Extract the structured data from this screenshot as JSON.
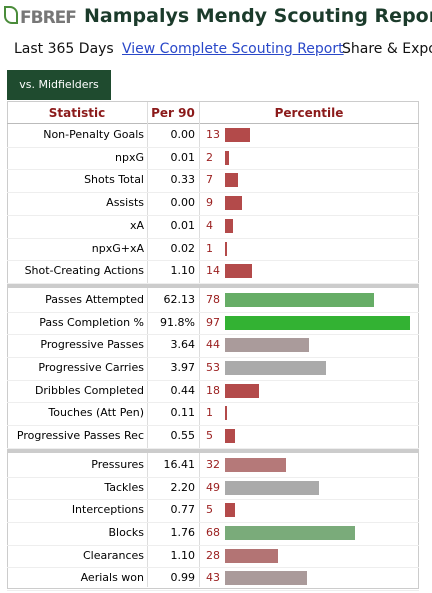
{
  "header": {
    "logo": "FBREF",
    "title": "Nampalys Mendy Scouting Report"
  },
  "nav": [
    "Last 365 Days",
    "View Complete Scouting Report",
    "Share & Export"
  ],
  "tab": "vs. Midfielders",
  "table": {
    "columns": [
      "Statistic",
      "Per 90",
      "Percentile"
    ],
    "groups": [
      {
        "rows": [
          {
            "stat": "Non-Penalty Goals",
            "per90": "0.00",
            "percentile": 13,
            "color": "#b34a4a"
          },
          {
            "stat": "npxG",
            "per90": "0.01",
            "percentile": 2,
            "color": "#b34a4a"
          },
          {
            "stat": "Shots Total",
            "per90": "0.33",
            "percentile": 7,
            "color": "#b34a4a"
          },
          {
            "stat": "Assists",
            "per90": "0.00",
            "percentile": 9,
            "color": "#b34a4a"
          },
          {
            "stat": "xA",
            "per90": "0.01",
            "percentile": 4,
            "color": "#b34a4a"
          },
          {
            "stat": "npxG+xA",
            "per90": "0.02",
            "percentile": 1,
            "color": "#b34a4a"
          },
          {
            "stat": "Shot-Creating Actions",
            "per90": "1.10",
            "percentile": 14,
            "color": "#b34a4a"
          }
        ]
      },
      {
        "rows": [
          {
            "stat": "Passes Attempted",
            "per90": "62.13",
            "percentile": 78,
            "color": "#66ad66"
          },
          {
            "stat": "Pass Completion %",
            "per90": "91.8%",
            "percentile": 97,
            "color": "#33b233"
          },
          {
            "stat": "Progressive Passes",
            "per90": "3.64",
            "percentile": 44,
            "color": "#aa9b9b"
          },
          {
            "stat": "Progressive Carries",
            "per90": "3.97",
            "percentile": 53,
            "color": "#aaaaaa"
          },
          {
            "stat": "Dribbles Completed",
            "per90": "0.44",
            "percentile": 18,
            "color": "#b34a4a"
          },
          {
            "stat": "Touches (Att Pen)",
            "per90": "0.11",
            "percentile": 1,
            "color": "#b34a4a"
          },
          {
            "stat": "Progressive Passes Rec",
            "per90": "0.55",
            "percentile": 5,
            "color": "#b34a4a"
          }
        ]
      },
      {
        "rows": [
          {
            "stat": "Pressures",
            "per90": "16.41",
            "percentile": 32,
            "color": "#b57979"
          },
          {
            "stat": "Tackles",
            "per90": "2.20",
            "percentile": 49,
            "color": "#aaaaaa"
          },
          {
            "stat": "Interceptions",
            "per90": "0.77",
            "percentile": 5,
            "color": "#b34a4a"
          },
          {
            "stat": "Blocks",
            "per90": "1.76",
            "percentile": 68,
            "color": "#7aab7a"
          },
          {
            "stat": "Clearances",
            "per90": "1.10",
            "percentile": 28,
            "color": "#b37474"
          },
          {
            "stat": "Aerials won",
            "per90": "0.99",
            "percentile": 43,
            "color": "#aa9a9a"
          }
        ]
      }
    ]
  }
}
